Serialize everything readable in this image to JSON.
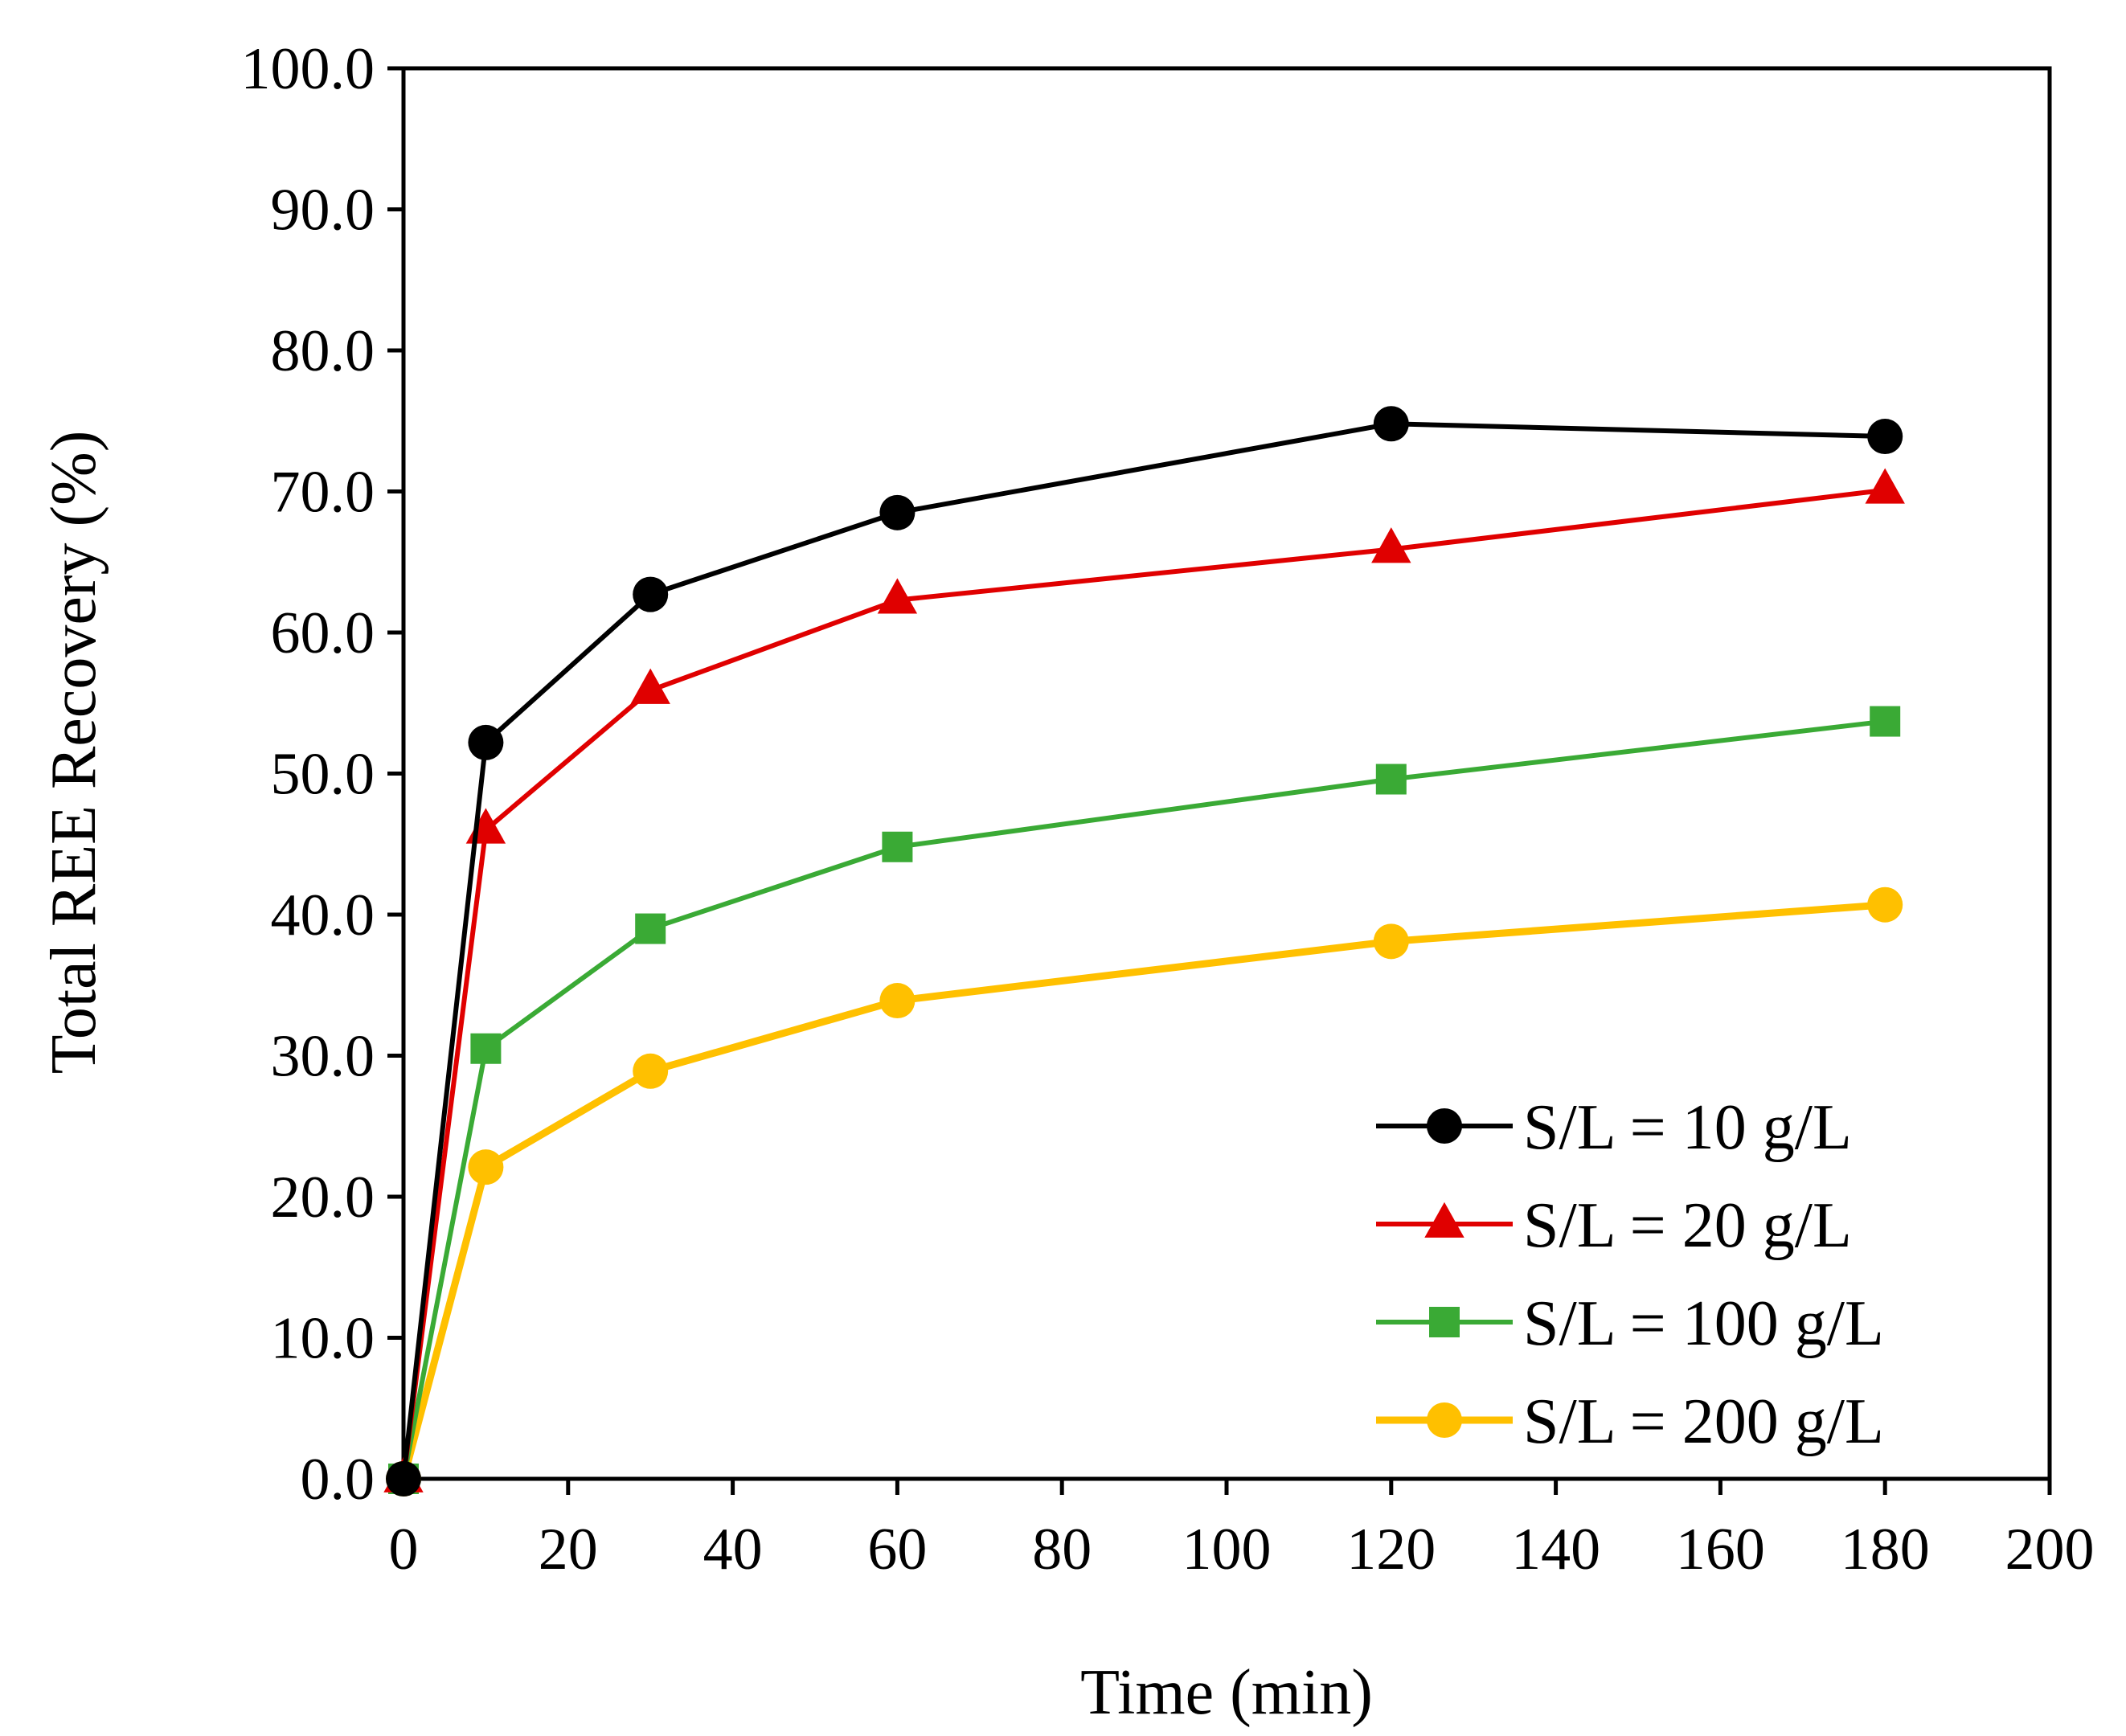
{
  "chart_data": {
    "type": "line",
    "title": "",
    "xlabel": "Time (min)",
    "ylabel": "Total REE Recovery (%)",
    "xlim": [
      0,
      200
    ],
    "ylim": [
      0,
      100
    ],
    "xticks": [
      "0",
      "20",
      "40",
      "60",
      "80",
      "100",
      "120",
      "140",
      "160",
      "180",
      "200"
    ],
    "yticks": [
      "0.0",
      "10.0",
      "20.0",
      "30.0",
      "40.0",
      "50.0",
      "60.0",
      "70.0",
      "80.0",
      "90.0",
      "100.0"
    ],
    "grid": false,
    "legend_position": "bottom-right",
    "x": [
      0,
      10,
      30,
      60,
      120,
      180
    ],
    "series": [
      {
        "name": "S/L = 10 g/L",
        "marker": "circle",
        "color": "#000000",
        "values": [
          0,
          52.2,
          62.7,
          68.5,
          74.8,
          73.9
        ]
      },
      {
        "name": "S/L = 20 g/L",
        "marker": "triangle",
        "color": "#e00000",
        "values": [
          0,
          46.0,
          55.9,
          62.3,
          65.9,
          70.1
        ]
      },
      {
        "name": "S/L = 100 g/L",
        "marker": "square",
        "color": "#3aaa35",
        "values": [
          0,
          30.5,
          39.0,
          44.8,
          49.6,
          53.7
        ]
      },
      {
        "name": "S/L = 200 g/L",
        "marker": "circle",
        "color": "#ffc000",
        "values": [
          0,
          22.1,
          28.9,
          33.9,
          38.1,
          40.7
        ]
      }
    ]
  }
}
